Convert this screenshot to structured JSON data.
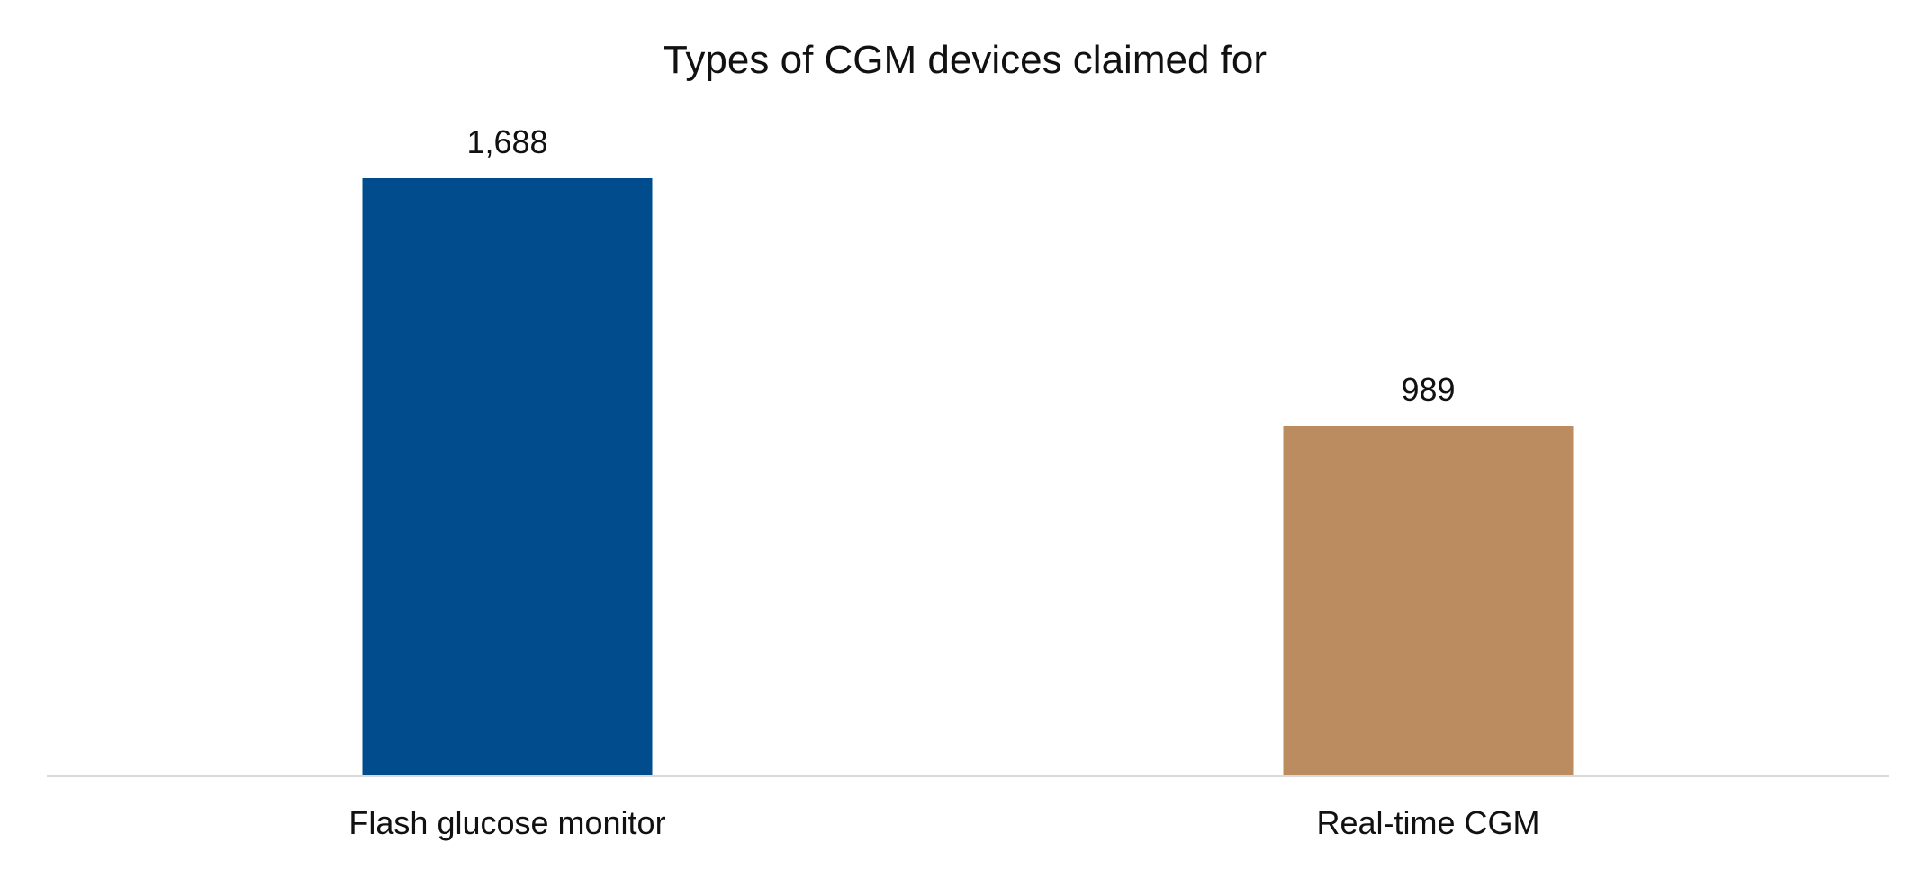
{
  "chart_data": {
    "type": "bar",
    "title": "Types of CGM devices claimed for",
    "xlabel": "",
    "ylabel": "",
    "categories": [
      "Flash glucose monitor",
      "Real-time CGM"
    ],
    "values": [
      1688,
      989
    ],
    "value_labels": [
      "1,688",
      "989"
    ],
    "colors": [
      "#004C8C",
      "#BB8C60"
    ],
    "ylim": [
      0,
      1688
    ],
    "grid": false,
    "legend": "none",
    "axis_color": "#D9D9D9"
  }
}
